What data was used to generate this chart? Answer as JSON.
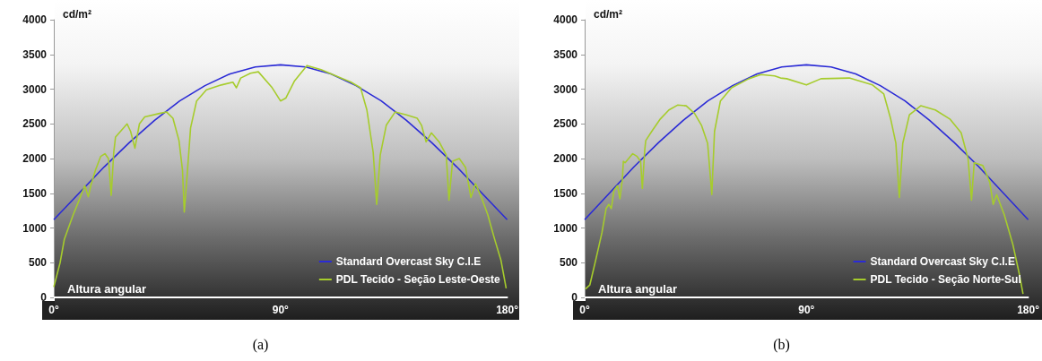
{
  "chart_data": [
    {
      "type": "line",
      "title": "(a)",
      "xlabel": "Altura angular",
      "ylabel": "cd/m²",
      "xlim": [
        0,
        180
      ],
      "xticks": [
        {
          "value": 0,
          "label": "0°"
        },
        {
          "value": 90,
          "label": "90°"
        },
        {
          "value": 180,
          "label": "180°"
        }
      ],
      "ylim": [
        0,
        4000
      ],
      "yticks": [
        0,
        500,
        1000,
        1500,
        2000,
        2500,
        3000,
        3500,
        4000
      ],
      "legend": "bottom right",
      "series": [
        {
          "name": "Standard Overcast Sky C.I.E",
          "color": "#2b2bd6",
          "x": [
            0,
            10,
            20,
            30,
            40,
            50,
            60,
            70,
            80,
            90,
            100,
            110,
            120,
            130,
            140,
            150,
            160,
            170,
            180
          ],
          "values": [
            1120,
            1500,
            1880,
            2230,
            2550,
            2830,
            3050,
            3220,
            3320,
            3350,
            3320,
            3220,
            3050,
            2830,
            2550,
            2230,
            1880,
            1500,
            1120
          ]
        },
        {
          "name": "PDL Tecido - Seção Leste-Oeste",
          "color": "#a6cc2c",
          "x": [
            0,
            2.5,
            4.2,
            7.7,
            9.5,
            12.3,
            13.7,
            14.7,
            16.5,
            18.6,
            20.3,
            21.7,
            22.8,
            23.8,
            24.5,
            29.1,
            30.5,
            32.2,
            34,
            36.1,
            42,
            44.8,
            47.3,
            49.7,
            51.1,
            51.8,
            52.9,
            54.3,
            56.7,
            60.6,
            66.5,
            71.1,
            72.5,
            74.2,
            78.1,
            81.2,
            86.5,
            90,
            92.1,
            95.6,
            100.5,
            106.1,
            112,
            118,
            121.8,
            124.3,
            126.8,
            128.2,
            129.6,
            132,
            135.5,
            140,
            144.3,
            146,
            147.8,
            149.9,
            153,
            155.8,
            156.9,
            158.3,
            161,
            163.5,
            165.6,
            167.4,
            169.8,
            172.3,
            175,
            177.5,
            179.6
          ],
          "values": [
            150,
            500,
            840,
            1190,
            1350,
            1610,
            1450,
            1610,
            1830,
            2030,
            2070,
            2000,
            1470,
            2090,
            2310,
            2500,
            2390,
            2150,
            2500,
            2600,
            2650,
            2670,
            2580,
            2260,
            1830,
            1230,
            1740,
            2440,
            2830,
            2990,
            3060,
            3100,
            3020,
            3160,
            3230,
            3250,
            3030,
            2830,
            2870,
            3120,
            3340,
            3280,
            3190,
            3100,
            3020,
            2700,
            2090,
            1340,
            2050,
            2480,
            2670,
            2630,
            2580,
            2480,
            2240,
            2370,
            2240,
            2050,
            1400,
            1960,
            2000,
            1870,
            1440,
            1640,
            1440,
            1190,
            840,
            540,
            130
          ]
        }
      ]
    },
    {
      "type": "line",
      "title": "(b)",
      "xlabel": "Altura angular",
      "ylabel": "cd/m²",
      "xlim": [
        0,
        180
      ],
      "xticks": [
        {
          "value": 0,
          "label": "0°"
        },
        {
          "value": 90,
          "label": "90°"
        },
        {
          "value": 180,
          "label": "180°"
        }
      ],
      "ylim": [
        0,
        4000
      ],
      "yticks": [
        0,
        500,
        1000,
        1500,
        2000,
        2500,
        3000,
        3500,
        4000
      ],
      "legend": "bottom right",
      "series": [
        {
          "name": "Standard Overcast Sky C.I.E",
          "color": "#2b2bd6",
          "x": [
            0,
            10,
            20,
            30,
            40,
            50,
            60,
            70,
            80,
            90,
            100,
            110,
            120,
            130,
            140,
            150,
            160,
            170,
            180
          ],
          "values": [
            1120,
            1500,
            1880,
            2230,
            2550,
            2830,
            3050,
            3220,
            3320,
            3350,
            3320,
            3220,
            3050,
            2830,
            2550,
            2230,
            1880,
            1500,
            1120
          ]
        },
        {
          "name": "PDL Tecido - Seção Norte-Sul",
          "color": "#a6cc2c",
          "x": [
            0.3,
            2.1,
            4.5,
            7,
            8.7,
            9.8,
            10.8,
            11.9,
            13.3,
            14.3,
            15.3,
            15.7,
            16.4,
            19.5,
            21.3,
            22.7,
            23.4,
            24.4,
            24.8,
            27.2,
            30.7,
            34.2,
            37.7,
            41.2,
            44.6,
            47.4,
            49.9,
            51.6,
            52.7,
            55.1,
            59.6,
            66.6,
            71.5,
            77.1,
            79.5,
            82,
            90,
            95.9,
            107.4,
            116.8,
            121.4,
            124.2,
            126.3,
            127.7,
            129.1,
            131.8,
            136.4,
            142.3,
            148.2,
            152.8,
            155.6,
            157,
            158.1,
            161.6,
            164.4,
            165.8,
            167.2,
            170.3,
            173.8,
            176.5,
            177.9
          ],
          "values": [
            120,
            180,
            540,
            930,
            1280,
            1340,
            1280,
            1540,
            1610,
            1420,
            1700,
            1960,
            1940,
            2070,
            2030,
            1960,
            1570,
            2130,
            2260,
            2390,
            2570,
            2700,
            2770,
            2760,
            2650,
            2480,
            2220,
            1480,
            2390,
            2830,
            3020,
            3150,
            3210,
            3190,
            3160,
            3150,
            3060,
            3150,
            3160,
            3060,
            2930,
            2570,
            2220,
            1440,
            2220,
            2630,
            2760,
            2700,
            2570,
            2370,
            2000,
            1400,
            1940,
            1900,
            1660,
            1340,
            1480,
            1190,
            760,
            320,
            50
          ]
        }
      ]
    }
  ]
}
